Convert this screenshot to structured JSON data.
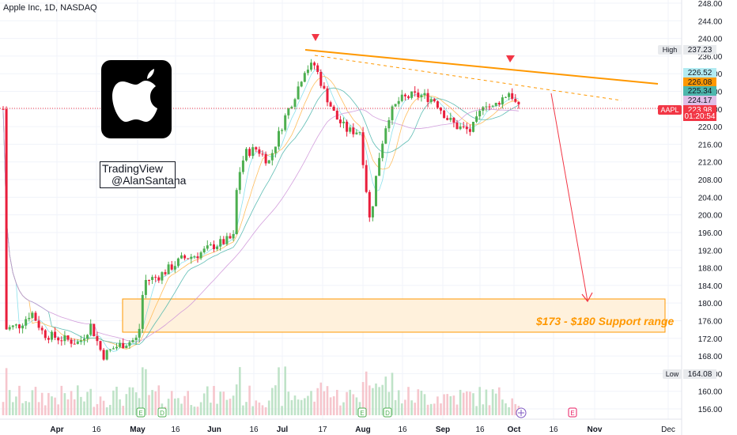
{
  "header": {
    "symbol": "Apple Inc, 1D, NASDAQ"
  },
  "watermark": {
    "line1": "TradingView",
    "line2": "@AlanSantana"
  },
  "logo": {
    "icon": "apple-logo-icon",
    "color": "#000000"
  },
  "colors": {
    "up": "#26a69a",
    "up_candle": "#4caf50",
    "down": "#e91e3c",
    "trendline": "#ff9800",
    "arrow": "#f23645",
    "support_fill": "#fff1dc",
    "support_border": "#ff9800",
    "annotation_text": "#ff9800"
  },
  "chart_data": {
    "type": "candlestick",
    "price_scale": {
      "ticks": [
        "248.00",
        "244.00",
        "240.00",
        "236.00",
        "232.00",
        "228.00",
        "224.00",
        "220.00",
        "216.00",
        "212.00",
        "208.00",
        "204.00",
        "200.00",
        "196.00",
        "192.00",
        "188.00",
        "184.00",
        "180.00",
        "176.00",
        "172.00",
        "168.00",
        "164.00",
        "160.00",
        "156.00"
      ],
      "ylim": [
        154,
        250
      ]
    },
    "time_axis": [
      "Apr",
      "16",
      "May",
      "16",
      "Jun",
      "16",
      "Jul",
      "17",
      "Aug",
      "16",
      "Sep",
      "16",
      "Oct",
      "16",
      "Nov",
      "Dec"
    ],
    "price_labels": [
      {
        "text": "High",
        "value": "237.23",
        "color": "#e8eaed",
        "textcolor": "#131722"
      },
      {
        "text": "",
        "value": "226.52",
        "color": "#b2ebf2",
        "textcolor": "#131722"
      },
      {
        "text": "",
        "value": "226.08",
        "color": "#ff9800",
        "textcolor": "#131722"
      },
      {
        "text": "",
        "value": "225.34",
        "color": "#4db6ac",
        "textcolor": "#131722"
      },
      {
        "text": "",
        "value": "224.17",
        "color": "#e1bee7",
        "textcolor": "#131722"
      },
      {
        "text": "AAPL",
        "value": "223.98",
        "color": "#f23645",
        "textcolor": "#ffffff"
      },
      {
        "text": "",
        "value": "01:20:54",
        "color": "#f23645",
        "textcolor": "#ffffff"
      },
      {
        "text": "Low",
        "value": "164.08",
        "color": "#e8eaed",
        "textcolor": "#131722"
      }
    ],
    "last_price": 223.98,
    "annotations": [
      {
        "text": "$173 - $180 Support range",
        "zone": [
          173,
          180
        ]
      }
    ],
    "event_markers": [
      "E",
      "D",
      "E",
      "D",
      "E",
      "D",
      "E",
      "E"
    ]
  }
}
